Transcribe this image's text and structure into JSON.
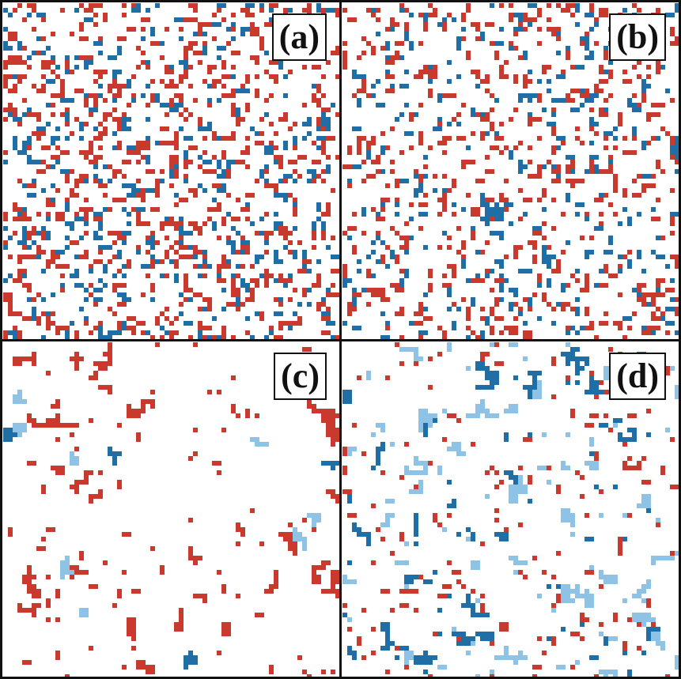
{
  "colors": {
    "red": "#c9392e",
    "dark_blue": "#1f6fa6",
    "light_blue": "#8fc3e6",
    "background": "#ffffff",
    "border": "#111111"
  },
  "panels": [
    {
      "label": "(a)",
      "pattern": "random-dense",
      "description_colors": [
        "red",
        "dark_blue"
      ],
      "density_red": 0.14,
      "density_dark_blue": 0.09,
      "density_light_blue": 0.0,
      "clusters_red": 0,
      "clusters_dark_blue": 0,
      "clusters_light_blue": 0,
      "seed": 11
    },
    {
      "label": "(b)",
      "pattern": "random-sparse",
      "density_red": 0.1,
      "density_dark_blue": 0.06,
      "density_light_blue": 0.0,
      "clusters_red": 0,
      "clusters_dark_blue": 4,
      "clusters_light_blue": 0,
      "seed": 23
    },
    {
      "label": "(c)",
      "pattern": "clustered",
      "density_red": 0.02,
      "density_dark_blue": 0.0,
      "density_light_blue": 0.0,
      "clusters_red": 34,
      "clusters_dark_blue": 4,
      "clusters_light_blue": 8,
      "seed": 37
    },
    {
      "label": "(d)",
      "pattern": "mixed",
      "density_red": 0.035,
      "density_dark_blue": 0.01,
      "density_light_blue": 0.01,
      "clusters_red": 0,
      "clusters_dark_blue": 26,
      "clusters_light_blue": 38,
      "seed": 53
    }
  ]
}
